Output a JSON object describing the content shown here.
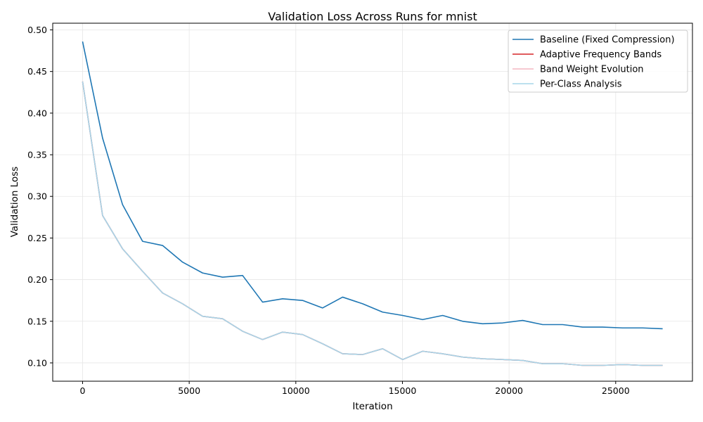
{
  "chart_data": {
    "type": "line",
    "title": "Validation Loss Across Runs for mnist",
    "xlabel": "Iteration",
    "ylabel": "Validation Loss",
    "xlim": [
      -1400,
      28600
    ],
    "ylim": [
      0.078,
      0.508
    ],
    "xticks": [
      0,
      5000,
      10000,
      15000,
      20000,
      25000
    ],
    "yticks": [
      0.1,
      0.15,
      0.2,
      0.25,
      0.3,
      0.35,
      0.4,
      0.45,
      0.5
    ],
    "ytick_labels": [
      "0.10",
      "0.15",
      "0.20",
      "0.25",
      "0.30",
      "0.35",
      "0.40",
      "0.45",
      "0.50"
    ],
    "grid": true,
    "legend_position": "top-right",
    "x": [
      0,
      938,
      1876,
      2814,
      3752,
      4690,
      5628,
      6566,
      7504,
      8442,
      9380,
      10318,
      11256,
      12194,
      13132,
      14070,
      15008,
      15946,
      16884,
      17822,
      18760,
      19698,
      20636,
      21574,
      22512,
      23450,
      24388,
      25326,
      26264,
      27202
    ],
    "series": [
      {
        "name": "Baseline (Fixed Compression)",
        "color": "#1f77b4",
        "values": [
          0.486,
          0.37,
          0.29,
          0.246,
          0.241,
          0.221,
          0.208,
          0.203,
          0.205,
          0.173,
          0.177,
          0.175,
          0.166,
          0.179,
          0.171,
          0.161,
          0.157,
          0.152,
          0.157,
          0.15,
          0.147,
          0.148,
          0.151,
          0.146,
          0.146,
          0.143,
          0.143,
          0.142,
          0.142,
          0.141
        ]
      },
      {
        "name": "Adaptive Frequency Bands",
        "color": "#d62728",
        "values": [
          0.438,
          0.277,
          0.237,
          0.21,
          0.184,
          0.171,
          0.156,
          0.153,
          0.138,
          0.128,
          0.137,
          0.134,
          0.123,
          0.111,
          0.11,
          0.117,
          0.104,
          0.114,
          0.111,
          0.107,
          0.105,
          0.104,
          0.103,
          0.099,
          0.099,
          0.097,
          0.097,
          0.098,
          0.097,
          0.097
        ]
      },
      {
        "name": "Band Weight Evolution",
        "color": "#f4b6c2",
        "values": [
          0.438,
          0.277,
          0.237,
          0.21,
          0.184,
          0.171,
          0.156,
          0.153,
          0.138,
          0.128,
          0.137,
          0.134,
          0.123,
          0.111,
          0.11,
          0.117,
          0.104,
          0.114,
          0.111,
          0.107,
          0.105,
          0.104,
          0.103,
          0.099,
          0.099,
          0.097,
          0.097,
          0.098,
          0.097,
          0.097
        ]
      },
      {
        "name": "Per-Class Analysis",
        "color": "#a6d5e8",
        "values": [
          0.438,
          0.277,
          0.237,
          0.21,
          0.184,
          0.171,
          0.156,
          0.153,
          0.138,
          0.128,
          0.137,
          0.134,
          0.123,
          0.111,
          0.11,
          0.117,
          0.104,
          0.114,
          0.111,
          0.107,
          0.105,
          0.104,
          0.103,
          0.099,
          0.099,
          0.097,
          0.097,
          0.098,
          0.097,
          0.097
        ]
      }
    ]
  }
}
